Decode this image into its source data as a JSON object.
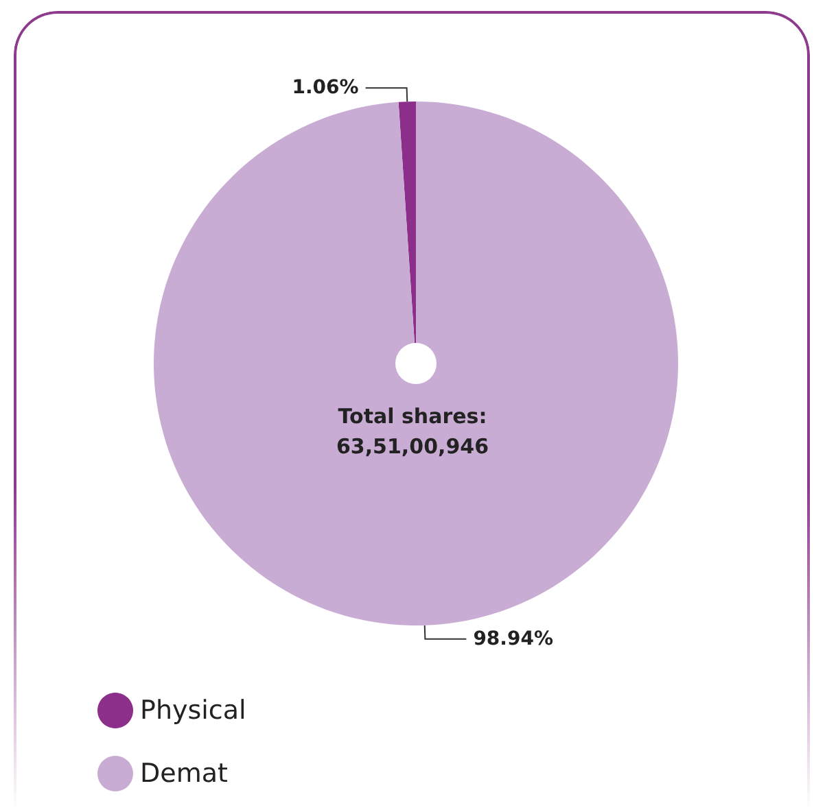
{
  "chart_data": {
    "type": "pie",
    "categories": [
      "Physical",
      "Demat"
    ],
    "values": [
      1.06,
      98.94
    ],
    "colors": [
      "#8b2f8b",
      "#c9acd4"
    ],
    "value_labels": [
      "1.06%",
      "98.94%"
    ],
    "legend": "bottom left",
    "annotations": [
      "Total shares:",
      "63,51,00,946"
    ]
  }
}
